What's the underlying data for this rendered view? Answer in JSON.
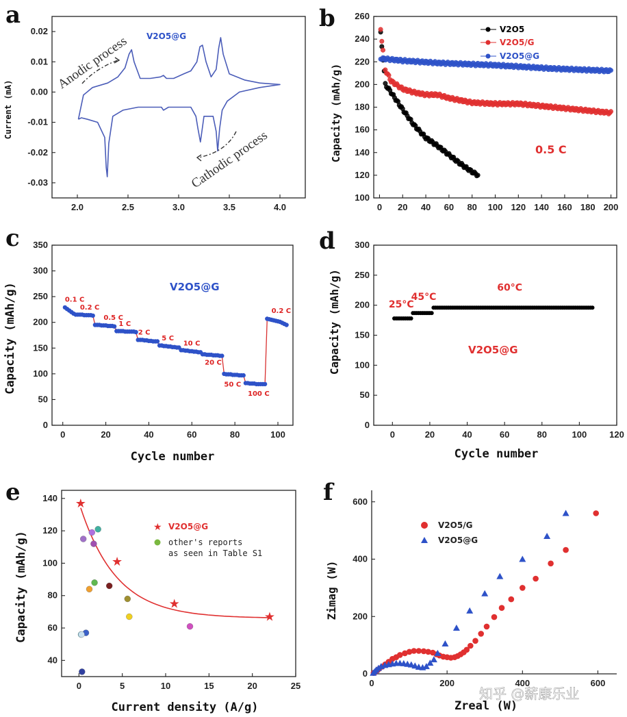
{
  "panels": [
    {
      "id": "a",
      "label": "a"
    },
    {
      "id": "b",
      "label": "b"
    },
    {
      "id": "c",
      "label": "c"
    },
    {
      "id": "d",
      "label": "d"
    },
    {
      "id": "e",
      "label": "e"
    },
    {
      "id": "f",
      "label": "f"
    }
  ],
  "watermark": "知乎 @薪康乐业",
  "chart_data": [
    {
      "panel": "a",
      "type": "line",
      "title": "V2O5@G",
      "xlabel": "",
      "ylabel": "Current (mA)",
      "xlim": [
        1.75,
        4.25
      ],
      "ylim": [
        -0.035,
        0.025
      ],
      "xticks": [
        "2.0",
        "2.5",
        "3.0",
        "3.5",
        "4.0"
      ],
      "yticks": [
        "0.02",
        "0.01",
        "0.00",
        "-0.01",
        "-0.02",
        "-0.03"
      ],
      "annotations": [
        "Anodic process",
        "Cathodic process"
      ],
      "series": [
        {
          "name": "anodic",
          "x": [
            2.01,
            2.06,
            2.15,
            2.3,
            2.4,
            2.47,
            2.51,
            2.535,
            2.56,
            2.62,
            2.72,
            2.82,
            2.85,
            2.88,
            2.95,
            3.05,
            3.12,
            3.18,
            3.21,
            3.235,
            3.27,
            3.32,
            3.37,
            3.395,
            3.415,
            3.44,
            3.5,
            3.65,
            3.8,
            4.0
          ],
          "y": [
            -0.009,
            -0.001,
            0.0015,
            0.003,
            0.005,
            0.008,
            0.0125,
            0.014,
            0.01,
            0.0045,
            0.0045,
            0.005,
            0.0055,
            0.0045,
            0.0045,
            0.006,
            0.007,
            0.01,
            0.015,
            0.0155,
            0.01,
            0.005,
            0.0075,
            0.0145,
            0.018,
            0.0125,
            0.006,
            0.004,
            0.003,
            0.0025
          ]
        },
        {
          "name": "cathodic",
          "x": [
            4.0,
            3.8,
            3.6,
            3.48,
            3.43,
            3.405,
            3.385,
            3.37,
            3.34,
            3.3,
            3.25,
            3.215,
            3.19,
            3.17,
            3.12,
            3.0,
            2.9,
            2.85,
            2.83,
            2.81,
            2.6,
            2.45,
            2.35,
            2.31,
            2.295,
            2.285,
            2.27,
            2.2,
            2.1,
            2.04,
            2.01
          ],
          "y": [
            0.0025,
            0.0015,
            0.0,
            -0.003,
            -0.006,
            -0.012,
            -0.0195,
            -0.013,
            -0.008,
            -0.008,
            -0.008,
            -0.0165,
            -0.012,
            -0.008,
            -0.005,
            -0.005,
            -0.005,
            -0.006,
            -0.005,
            -0.005,
            -0.005,
            -0.006,
            -0.008,
            -0.017,
            -0.028,
            -0.025,
            -0.015,
            -0.01,
            -0.009,
            -0.0085,
            -0.009
          ]
        }
      ]
    },
    {
      "panel": "b",
      "type": "scatter",
      "xlabel": "",
      "ylabel": "Capacity (mAh/g)",
      "xlim": [
        -5,
        205
      ],
      "ylim": [
        100,
        260
      ],
      "xticks": [
        "0",
        "20",
        "40",
        "60",
        "80",
        "100",
        "120",
        "140",
        "160",
        "180",
        "200"
      ],
      "yticks": [
        "100",
        "120",
        "140",
        "160",
        "180",
        "200",
        "220",
        "240",
        "260"
      ],
      "annotation": "0.5 C",
      "legend": [
        "V2O5",
        "V2O5/G",
        "V2O5@G"
      ],
      "series": [
        {
          "name": "V2O5",
          "color": "#000000",
          "n": 85,
          "x": [
            1,
            5,
            10,
            20,
            30,
            40,
            50,
            60,
            70,
            80,
            85
          ],
          "y": [
            245,
            200,
            193,
            178,
            164,
            153,
            146,
            138,
            130,
            123,
            120
          ]
        },
        {
          "name": "V2O5/G",
          "color": "#e03030",
          "n": 200,
          "x": [
            1,
            5,
            10,
            20,
            30,
            40,
            50,
            60,
            70,
            80,
            100,
            120,
            140,
            160,
            180,
            200
          ],
          "y": [
            248,
            213,
            203,
            196,
            193,
            191,
            191,
            188,
            186,
            184,
            183,
            183,
            181,
            179,
            177,
            175
          ]
        },
        {
          "name": "V2O5@G",
          "color": "#2e52c8",
          "n": 200,
          "x": [
            1,
            10,
            20,
            50,
            100,
            150,
            200
          ],
          "y": [
            223,
            222,
            221,
            219,
            217,
            214,
            212
          ]
        }
      ]
    },
    {
      "panel": "c",
      "type": "scatter",
      "title": "V2O5@G",
      "xlabel": "Cycle number",
      "ylabel": "Capacity (mAh/g)",
      "xlim": [
        -5,
        107
      ],
      "ylim": [
        0,
        350
      ],
      "xticks": [
        "0",
        "20",
        "40",
        "60",
        "80",
        "100"
      ],
      "yticks": [
        "0",
        "50",
        "100",
        "150",
        "200",
        "250",
        "300",
        "350"
      ],
      "rate_labels": [
        "0.1 C",
        "0.2 C",
        "0.5 C",
        "1 C",
        "2 C",
        "5 C",
        "10 C",
        "20 C",
        "50 C",
        "100 C",
        "0.2 C"
      ],
      "x": [
        1,
        2,
        3,
        4,
        5,
        6,
        7,
        8,
        9,
        10,
        11,
        12,
        13,
        14,
        15,
        16,
        17,
        18,
        19,
        20,
        21,
        22,
        23,
        24,
        25,
        26,
        27,
        28,
        29,
        30,
        31,
        32,
        33,
        34,
        35,
        36,
        37,
        38,
        39,
        40,
        41,
        42,
        43,
        44,
        45,
        46,
        47,
        48,
        49,
        50,
        51,
        52,
        53,
        54,
        55,
        56,
        57,
        58,
        59,
        60,
        61,
        62,
        63,
        64,
        65,
        66,
        67,
        68,
        69,
        70,
        71,
        72,
        73,
        74,
        75,
        76,
        77,
        78,
        79,
        80,
        81,
        82,
        83,
        84,
        85,
        86,
        87,
        88,
        89,
        90,
        91,
        92,
        93,
        94,
        95,
        96,
        97,
        98,
        99,
        100,
        101,
        102,
        103,
        104
      ],
      "y": [
        229,
        226,
        223,
        220,
        217,
        215,
        215,
        215,
        215,
        214,
        214,
        214,
        214,
        213,
        195,
        195,
        195,
        194,
        194,
        194,
        193,
        193,
        193,
        192,
        183,
        183,
        183,
        183,
        182,
        182,
        182,
        182,
        182,
        181,
        166,
        166,
        166,
        165,
        165,
        164,
        164,
        163,
        163,
        163,
        155,
        155,
        154,
        154,
        153,
        153,
        152,
        152,
        151,
        151,
        146,
        146,
        145,
        145,
        144,
        144,
        143,
        143,
        142,
        142,
        138,
        138,
        137,
        137,
        137,
        136,
        136,
        136,
        135,
        135,
        100,
        99,
        99,
        99,
        98,
        98,
        98,
        97,
        97,
        97,
        82,
        82,
        81,
        81,
        81,
        80,
        80,
        80,
        80,
        80,
        207,
        206,
        205,
        204,
        203,
        202,
        201,
        199,
        197,
        195
      ]
    },
    {
      "panel": "d",
      "type": "scatter",
      "title": "V2O5@G",
      "xlabel": "Cycle number",
      "ylabel": "Capacity (mAh/g)",
      "xlim": [
        -10,
        120
      ],
      "ylim": [
        0,
        300
      ],
      "xticks": [
        "0",
        "20",
        "40",
        "60",
        "80",
        "100",
        "120"
      ],
      "yticks": [
        "0",
        "50",
        "100",
        "150",
        "200",
        "250",
        "300"
      ],
      "segment_labels": [
        "25°C",
        "45°C",
        "60°C"
      ],
      "segments": [
        {
          "label": "25°C",
          "x_start": 1,
          "x_end": 10,
          "y": 178
        },
        {
          "label": "45°C",
          "x_start": 11,
          "x_end": 21,
          "y": 187
        },
        {
          "label": "60°C",
          "x_start": 22,
          "x_end": 107,
          "y": 196
        }
      ]
    },
    {
      "panel": "e",
      "type": "scatter",
      "xlabel": "Current density (A/g)",
      "ylabel": "Capacity (mAh/g)",
      "xlim": [
        -2,
        25
      ],
      "ylim": [
        30,
        145
      ],
      "xticks": [
        "0",
        "5",
        "10",
        "15",
        "20",
        "25"
      ],
      "yticks": [
        "40",
        "60",
        "80",
        "100",
        "120",
        "140"
      ],
      "legend": [
        "V2O5@G",
        "other's reports",
        "as seen in Table S1"
      ],
      "series": [
        {
          "name": "V2O5@G",
          "color": "#e03030",
          "x": [
            0.2,
            4.4,
            11,
            22
          ],
          "y": [
            137,
            101,
            75,
            67
          ]
        },
        {
          "name": "other's reports",
          "x": [
            0.25,
            0.5,
            0.8,
            1.2,
            1.5,
            1.7,
            1.8,
            2.2,
            3.5,
            5.6,
            5.8,
            12.8,
            0.35,
            0.3
          ],
          "y": [
            56,
            115,
            57,
            84,
            119,
            112,
            88,
            121,
            86,
            78,
            67,
            61,
            33,
            56
          ],
          "colors": [
            "#4ec8d8",
            "#a070c8",
            "#3a60c8",
            "#f0a030",
            "#b070e0",
            "#a050b0",
            "#60b850",
            "#40b0a0",
            "#7a2020",
            "#a09030",
            "#f0d020",
            "#d050c0",
            "#3040a0",
            "#c8e0f0"
          ]
        }
      ]
    },
    {
      "panel": "f",
      "type": "scatter",
      "xlabel": "Zreal (W)",
      "ylabel": "Zimag (W)",
      "xlim": [
        0,
        650
      ],
      "ylim": [
        0,
        640
      ],
      "xticks": [
        "0",
        "200",
        "400",
        "600"
      ],
      "yticks": [
        "0",
        "200",
        "400",
        "600"
      ],
      "legend": [
        "V2O5/G",
        "V2O5@G"
      ],
      "series": [
        {
          "name": "V2O5/G",
          "color": "#e03030",
          "x": [
            5,
            10,
            15,
            20,
            28,
            36,
            45,
            55,
            65,
            75,
            88,
            100,
            112,
            125,
            138,
            150,
            162,
            172,
            180,
            190,
            200,
            210,
            220,
            228,
            236,
            244,
            252,
            262,
            275,
            290,
            305,
            325,
            345,
            370,
            400,
            435,
            475,
            515,
            595
          ],
          "y": [
            3,
            6,
            12,
            18,
            25,
            33,
            42,
            52,
            58,
            66,
            72,
            77,
            80,
            80,
            79,
            77,
            74,
            68,
            64,
            60,
            58,
            56,
            58,
            62,
            68,
            75,
            84,
            98,
            115,
            140,
            165,
            198,
            230,
            260,
            300,
            332,
            385,
            432,
            560
          ]
        },
        {
          "name": "V2O5@G",
          "color": "#2e52c8",
          "x": [
            4,
            8,
            12,
            18,
            25,
            35,
            45,
            55,
            65,
            75,
            85,
            95,
            105,
            115,
            125,
            135,
            145,
            155,
            165,
            175,
            195,
            225,
            260,
            300,
            340,
            400,
            465,
            515
          ],
          "y": [
            3,
            8,
            14,
            20,
            26,
            30,
            33,
            35,
            37,
            37,
            36,
            34,
            32,
            28,
            24,
            22,
            26,
            38,
            50,
            72,
            105,
            160,
            220,
            280,
            340,
            400,
            480,
            560
          ]
        }
      ]
    }
  ],
  "text_marks": {
    "a": {
      "title": "V2O5@G",
      "ylabel": "Current (mA)",
      "anodic": "Anodic process",
      "cathodic": "Cathodic process"
    },
    "b": {
      "ylabel": "Capacity (mAh/g)",
      "rate": "0.5 C",
      "leg1": "V2O5",
      "leg2": "V2O5/G",
      "leg3": "V2O5@G"
    },
    "c": {
      "ylabel": "Capacity (mAh/g)",
      "xlabel": "Cycle number",
      "title": "V2O5@G"
    },
    "d": {
      "ylabel": "Capacity (mAh/g)",
      "xlabel": "Cycle number",
      "title": "V2O5@G"
    },
    "e": {
      "ylabel": "Capacity (mAh/g)",
      "xlabel": "Current density (A/g)",
      "leg1": "V2O5@G",
      "leg2": "other's reports",
      "leg3": "as seen in Table S1"
    },
    "f": {
      "ylabel": "Zimag (W)",
      "xlabel": "Zreal (W)",
      "leg1": "V2O5/G",
      "leg2": "V2O5@G"
    }
  }
}
